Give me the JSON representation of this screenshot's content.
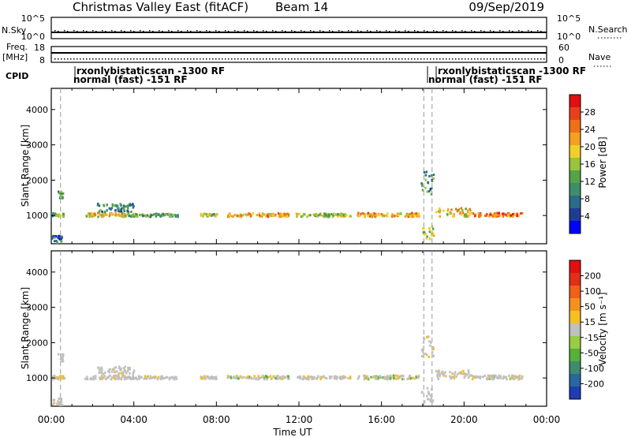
{
  "header": {
    "title": "Christmas Valley East (fitACF)",
    "beam": "Beam 14",
    "date": "09/Sep/2019"
  },
  "params": {
    "nsky_label": "N.Sky",
    "nsky_ticks": [
      "10^5",
      "10^0"
    ],
    "nsearch_label": "N.Search",
    "nsearch_ticks": [
      "10^5",
      "10^0"
    ],
    "freq_label": "Freq.",
    "freq_unit": "[MHz]",
    "freq_ticks": [
      "18",
      "8"
    ],
    "nave_label": "Nave",
    "nave_ticks": [
      "60",
      "0"
    ],
    "cpid_label": "CPID",
    "cpid_segments": [
      {
        "line1": "rxonlybistaticscan -1300 RF",
        "line2": "normal (fast) -151 RF"
      },
      {
        "line1": "rxonlybistaticscan -1300 RF",
        "line2": "normal (fast) -151 RF"
      }
    ]
  },
  "axes": {
    "xlabel": "Time UT",
    "xticks": [
      "00:00",
      "04:00",
      "08:00",
      "12:00",
      "16:00",
      "20:00",
      "00:00"
    ],
    "ylabel": "Slant Range [km]",
    "yticks": [
      "1000",
      "2000",
      "3000",
      "4000"
    ],
    "ylim": [
      200,
      4600
    ],
    "xlim_hours": [
      0,
      24
    ]
  },
  "colorbars": {
    "power": {
      "label": "Power [dB]",
      "ticks": [
        "28",
        "24",
        "20",
        "16",
        "12",
        "8",
        "4"
      ],
      "colors": [
        "#0000ff",
        "#1e3c96",
        "#2c6a8a",
        "#3d8f6a",
        "#56a34a",
        "#99c43b",
        "#f0d028",
        "#f5a020",
        "#f07018",
        "#e8401c",
        "#e01010"
      ]
    },
    "velocity": {
      "label": "Velocity [m s⁻¹]",
      "ticks": [
        "200",
        "100",
        "50",
        "15",
        "-15",
        "-50",
        "-100",
        "-200"
      ],
      "colors": [
        "#1f3cb4",
        "#2a66a0",
        "#3d8c6e",
        "#56b03a",
        "#99cc44",
        "#c0c0c0",
        "#f5c020",
        "#f59020",
        "#f06018",
        "#e03018",
        "#e01010"
      ]
    }
  },
  "chart_data": {
    "type": "heatmap",
    "title": "Christmas Valley East (fitACF)",
    "xlabel": "Time UT",
    "ylabel": "Slant Range [km]",
    "xlim": [
      0,
      24
    ],
    "ylim": [
      200,
      4600
    ],
    "scatter_bands": [
      {
        "t0": 0.3,
        "t1": 0.55,
        "r0": 1450,
        "r1": 1680,
        "level": 3
      },
      {
        "t0": 0.0,
        "t1": 0.6,
        "r0": 950,
        "r1": 1050,
        "level": 4
      },
      {
        "t0": 0.0,
        "t1": 0.5,
        "r0": 220,
        "r1": 420,
        "level": 2
      },
      {
        "t0": 1.6,
        "t1": 3.6,
        "r0": 950,
        "r1": 1060,
        "level": 6
      },
      {
        "t0": 2.2,
        "t1": 4.0,
        "r0": 1080,
        "r1": 1320,
        "level": 3
      },
      {
        "t0": 3.6,
        "t1": 6.1,
        "r0": 950,
        "r1": 1040,
        "level": 4
      },
      {
        "t0": 7.2,
        "t1": 8.0,
        "r0": 960,
        "r1": 1040,
        "level": 5
      },
      {
        "t0": 8.5,
        "t1": 11.5,
        "r0": 950,
        "r1": 1050,
        "level": 7
      },
      {
        "t0": 11.8,
        "t1": 14.5,
        "r0": 950,
        "r1": 1040,
        "level": 5
      },
      {
        "t0": 14.8,
        "t1": 17.8,
        "r0": 950,
        "r1": 1060,
        "level": 7
      },
      {
        "t0": 17.9,
        "t1": 18.5,
        "r0": 1550,
        "r1": 2250,
        "level": 3
      },
      {
        "t0": 17.9,
        "t1": 18.5,
        "r0": 250,
        "r1": 700,
        "level": 5
      },
      {
        "t0": 18.6,
        "t1": 20.3,
        "r0": 950,
        "r1": 1200,
        "level": 6
      },
      {
        "t0": 20.3,
        "t1": 22.8,
        "r0": 950,
        "r1": 1060,
        "level": 8
      }
    ],
    "cpid_change_hours": [
      0.45,
      18.05,
      18.45
    ],
    "power_scale_db": [
      4,
      8,
      12,
      16,
      20,
      24,
      28
    ],
    "velocity_scale": [
      -200,
      -100,
      -50,
      -15,
      15,
      50,
      100,
      200
    ]
  }
}
